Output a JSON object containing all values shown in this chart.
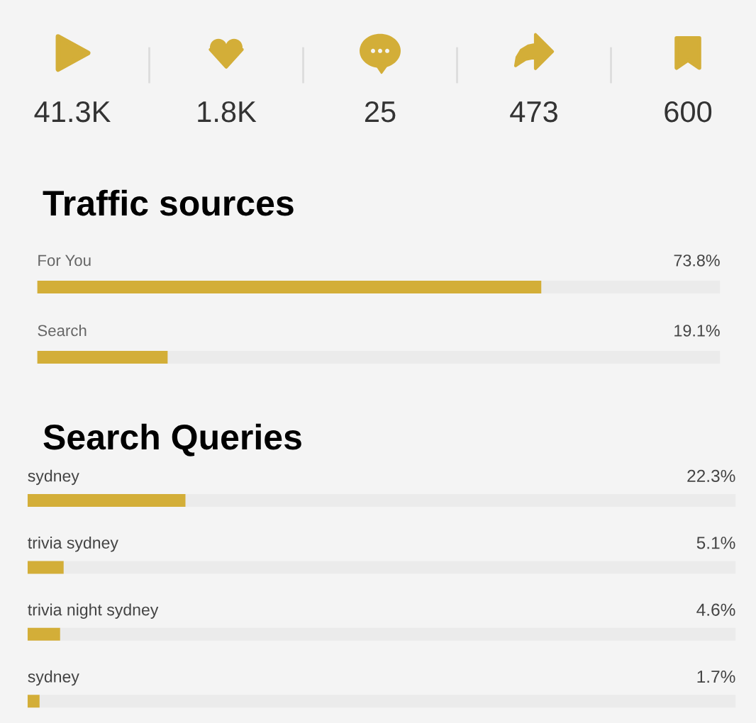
{
  "chart_data": [
    {
      "type": "other",
      "annotations": [
        "41.3K",
        "1.8K",
        "25",
        "473",
        "600"
      ]
    },
    {
      "type": "bar",
      "title": "Traffic sources",
      "orientation": "horizontal",
      "categories": [
        "For You",
        "Search"
      ],
      "values": [
        73.8,
        19.1
      ],
      "value_labels": [
        "73.8%",
        "19.1%"
      ],
      "color": "#d3ae38",
      "xlim": [
        0,
        100
      ],
      "tick_labels": "y"
    },
    {
      "type": "bar",
      "title": "Search Queries",
      "orientation": "horizontal",
      "categories": [
        "sydney",
        "trivia sydney",
        "trivia night sydney",
        "sydney"
      ],
      "values": [
        22.3,
        5.1,
        4.6,
        1.7
      ],
      "value_labels": [
        "22.3%",
        "5.1%",
        "4.6%",
        "1.7%"
      ],
      "color": "#d3ae38",
      "xlim": [
        0,
        100
      ],
      "tick_labels": "y"
    }
  ]
}
